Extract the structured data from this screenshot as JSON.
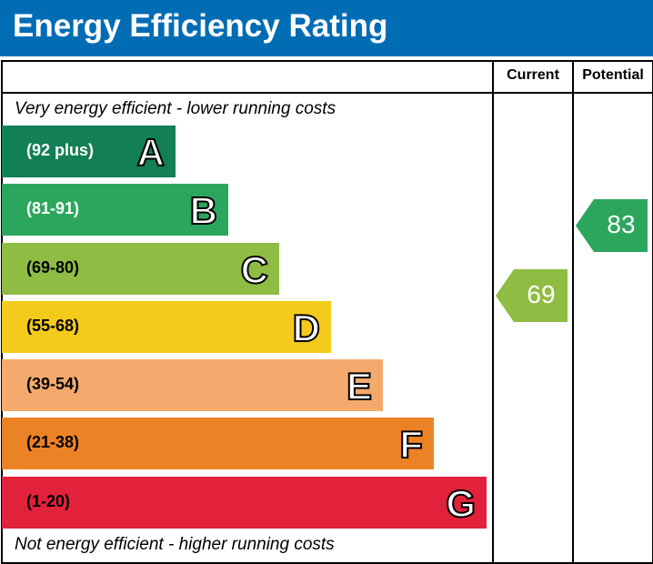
{
  "title": "Energy Efficiency Rating",
  "columns": {
    "current": "Current",
    "potential": "Potential"
  },
  "notes": {
    "top": "Very energy efficient - lower running costs",
    "bottom": "Not energy efficient - higher running costs"
  },
  "chart_data": {
    "type": "bar",
    "title": "Energy Efficiency Rating",
    "categories": [
      "A",
      "B",
      "C",
      "D",
      "E",
      "F",
      "G"
    ],
    "ranges": [
      "(92 plus)",
      "(81-91)",
      "(69-80)",
      "(55-68)",
      "(39-54)",
      "(21-38)",
      "(1-20)"
    ],
    "colors": [
      "#127f55",
      "#2ca65d",
      "#8fbc43",
      "#f4cb1b",
      "#f3aa6c",
      "#ec8226",
      "#e2213b"
    ],
    "current": {
      "value": 69,
      "color": "#8fbc43"
    },
    "potential": {
      "value": 83,
      "color": "#2ca65d"
    }
  }
}
